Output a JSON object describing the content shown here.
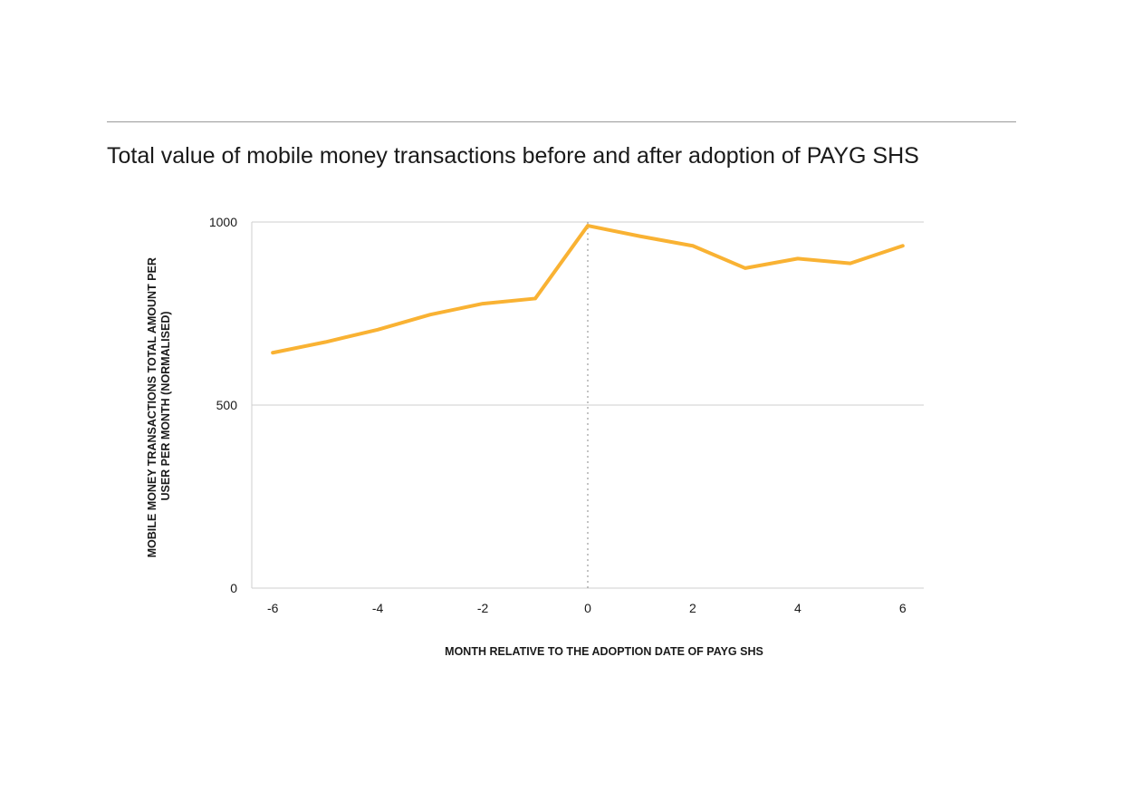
{
  "title": "Total value of mobile money transactions before and after adoption of PAYG SHS",
  "chart_data": {
    "type": "line",
    "x": [
      -6,
      -5,
      -4,
      -3,
      -2,
      -1,
      0,
      1,
      2,
      3,
      4,
      5,
      6
    ],
    "series": [
      {
        "values": [
          643,
          672,
          706,
          747,
          777,
          791,
          990,
          961,
          935,
          874,
          900,
          887,
          935
        ],
        "color": "#F9B233"
      }
    ],
    "xticks": [
      "-6",
      "-4",
      "-2",
      "0",
      "2",
      "4",
      "6"
    ],
    "yticks": [
      "0",
      "500",
      "1000"
    ],
    "xlim": [
      -6.4,
      6.4
    ],
    "ylim": [
      0,
      1000
    ],
    "xlabel": "MONTH RELATIVE TO THE ADOPTION DATE OF PAYG SHS",
    "ylabel_lines": [
      "MOBILE MONEY TRANSACTIONS TOTAL AMOUNT PER",
      "USER PER MONTH (NORMALISED)"
    ],
    "reference_line_x": 0,
    "grid": "horizontal"
  }
}
